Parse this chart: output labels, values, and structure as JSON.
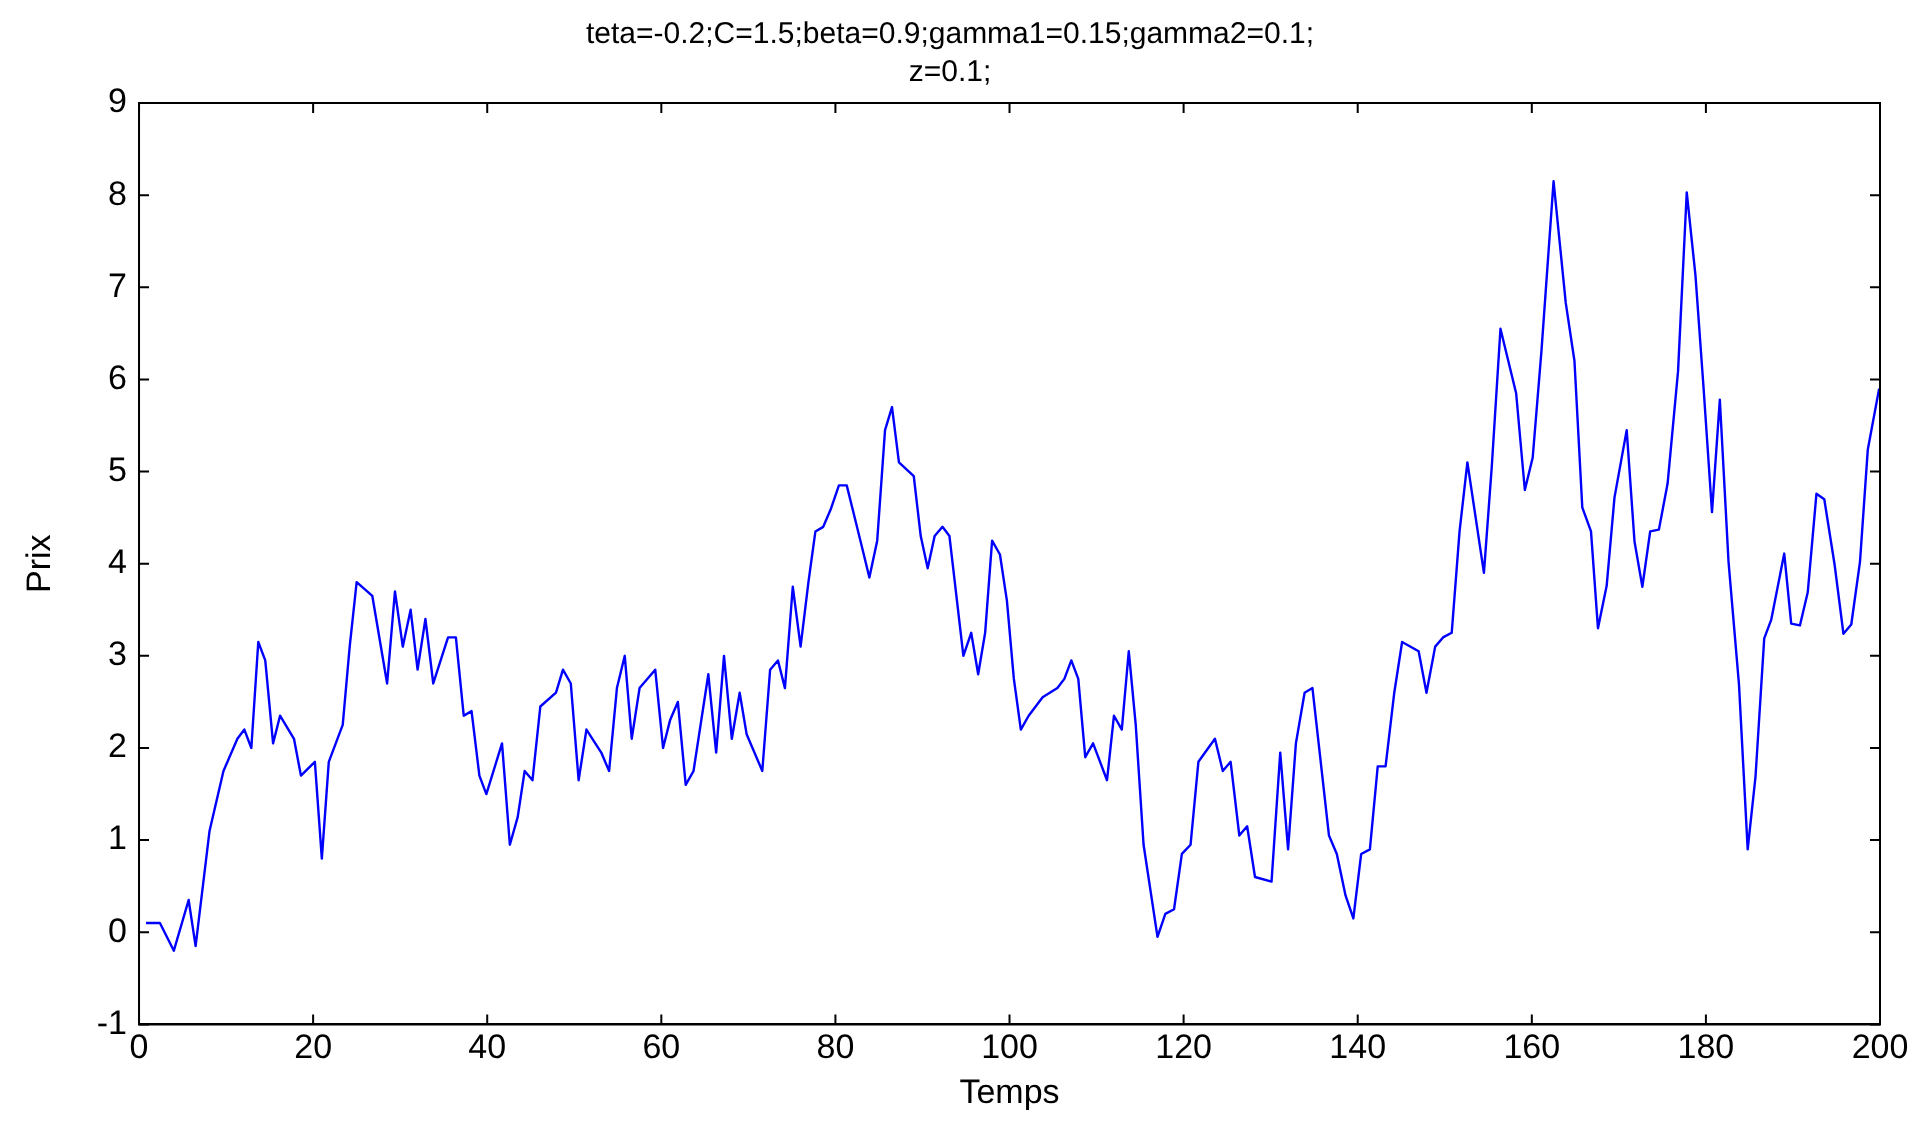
{
  "chart_data": {
    "type": "line",
    "title": "teta=-0.2;C=1.5;beta=0.9;gamma1=0.15;gamma2=0.1;\nz=0.1;",
    "xlabel": "Temps",
    "ylabel": "Prix",
    "xlim": [
      0,
      200
    ],
    "xticks": [
      0,
      20,
      40,
      60,
      80,
      100,
      120,
      140,
      160,
      180,
      200
    ],
    "ylim": [
      -1,
      9
    ],
    "yticks": [
      -1,
      0,
      1,
      2,
      3,
      4,
      5,
      6,
      7,
      8,
      9
    ],
    "grid": false,
    "legend": false,
    "marker": "none",
    "line_style": "solid",
    "series": [
      {
        "color": "#0000ff",
        "x": [
          0.8,
          2.4,
          4.0,
          5.7,
          6.5,
          8.1,
          9.7,
          11.3,
          12.1,
          12.9,
          13.7,
          14.5,
          15.4,
          16.2,
          17.8,
          18.6,
          20.2,
          21,
          21.8,
          23.4,
          24.2,
          25,
          26.8,
          28.5,
          29.4,
          30.3,
          31.2,
          32.0,
          32.9,
          33.8,
          35.5,
          36.4,
          37.3,
          38.2,
          39.1,
          39.9,
          41.7,
          42.6,
          43.5,
          44.3,
          45.2,
          46.1,
          47.9,
          48.7,
          49.6,
          50.5,
          51.4,
          53.1,
          54.0,
          54.9,
          55.8,
          56.6,
          57.5,
          59.3,
          60.2,
          61.0,
          61.9,
          62.8,
          63.7,
          65.4,
          66.3,
          67.2,
          68.1,
          69.0,
          69.8,
          71.6,
          72.5,
          73.4,
          74.2,
          75.1,
          76.0,
          76.9,
          77.7,
          78.6,
          79.5,
          80.4,
          81.3,
          83.0,
          83.9,
          84.8,
          85.7,
          86.5,
          87.3,
          89.0,
          89.8,
          90.6,
          91.4,
          92.3,
          93.1,
          94.7,
          95.6,
          96.4,
          97.2,
          98.0,
          98.9,
          99.7,
          100.5,
          101.3,
          102.2,
          103.8,
          105.5,
          106.3,
          107.1,
          107.9,
          108.7,
          109.6,
          111.2,
          112.0,
          112.9,
          113.7,
          114.5,
          115.4,
          117,
          117.9,
          118.9,
          119.8,
          120.8,
          121.7,
          123.6,
          124.5,
          125.4,
          126.4,
          127.3,
          128.2,
          130.1,
          131.1,
          132.0,
          132.9,
          133.9,
          134.8,
          136.7,
          137.6,
          138.6,
          139.5,
          140.4,
          141.4,
          142.3,
          143.2,
          144.2,
          145.1,
          147.0,
          147.9,
          148.9,
          149.8,
          150.8,
          151.7,
          152.6,
          154.5,
          155.4,
          156.4,
          157.3,
          158.2,
          159.2,
          160.1,
          161.1,
          162.5,
          163.9,
          164.9,
          165.8,
          166.8,
          167.6,
          168.6,
          169.5,
          170.9,
          171.8,
          172.7,
          173.6,
          174.6,
          175.6,
          176.8,
          177.8,
          178.8,
          179.7,
          180.7,
          181.6,
          182.6,
          183.8,
          184.8,
          185.7,
          186.7,
          187.5,
          189.0,
          189.8,
          190.8,
          191.7,
          192.7,
          193.6,
          194.8,
          195.8,
          196.7,
          197.7,
          198.6,
          199.9
        ],
        "values": [
          0.1,
          0.1,
          -0.2,
          0.35,
          -0.15,
          1.1,
          1.75,
          2.1,
          2.2,
          2.0,
          3.15,
          2.95,
          2.05,
          2.35,
          2.1,
          1.7,
          1.85,
          0.8,
          1.85,
          2.25,
          3.1,
          3.8,
          3.65,
          2.7,
          3.7,
          3.1,
          3.5,
          2.85,
          3.4,
          2.7,
          3.2,
          3.2,
          2.35,
          2.4,
          1.7,
          1.5,
          2.05,
          0.95,
          1.25,
          1.75,
          1.65,
          2.45,
          2.6,
          2.85,
          2.7,
          1.65,
          2.2,
          1.95,
          1.75,
          2.65,
          3.0,
          2.1,
          2.65,
          2.85,
          2.0,
          2.3,
          2.5,
          1.6,
          1.75,
          2.8,
          1.95,
          3.0,
          2.1,
          2.6,
          2.15,
          1.75,
          2.85,
          2.95,
          2.65,
          3.75,
          3.1,
          3.8,
          4.35,
          4.4,
          4.6,
          4.85,
          4.85,
          4.2,
          3.85,
          4.25,
          5.45,
          5.7,
          5.1,
          4.95,
          4.3,
          3.95,
          4.3,
          4.4,
          4.3,
          3.0,
          3.25,
          2.8,
          3.25,
          4.25,
          4.1,
          3.6,
          2.75,
          2.2,
          2.35,
          2.55,
          2.65,
          2.75,
          2.95,
          2.75,
          1.9,
          2.05,
          1.65,
          2.35,
          2.2,
          3.05,
          2.25,
          0.95,
          -0.05,
          0.2,
          0.25,
          0.85,
          0.95,
          1.85,
          2.1,
          1.75,
          1.85,
          1.05,
          1.15,
          0.6,
          0.55,
          1.95,
          0.9,
          2.05,
          2.6,
          2.65,
          1.05,
          0.85,
          0.4,
          0.15,
          0.85,
          0.9,
          1.8,
          1.8,
          2.6,
          3.15,
          3.05,
          2.6,
          3.1,
          3.2,
          3.25,
          4.35,
          5.1,
          3.9,
          5.05,
          6.55,
          6.2,
          5.85,
          4.8,
          5.15,
          6.3,
          8.15,
          6.83,
          6.2,
          4.61,
          4.35,
          3.3,
          3.76,
          4.72,
          5.45,
          4.24,
          3.75,
          4.35,
          4.37,
          4.87,
          6.09,
          8.03,
          7.13,
          5.95,
          4.56,
          5.78,
          4.02,
          2.69,
          0.9,
          1.69,
          3.19,
          3.39,
          4.11,
          3.35,
          3.33,
          3.69,
          4.76,
          4.7,
          3.98,
          3.24,
          3.34,
          4.02,
          5.24,
          5.9
        ]
      }
    ]
  }
}
